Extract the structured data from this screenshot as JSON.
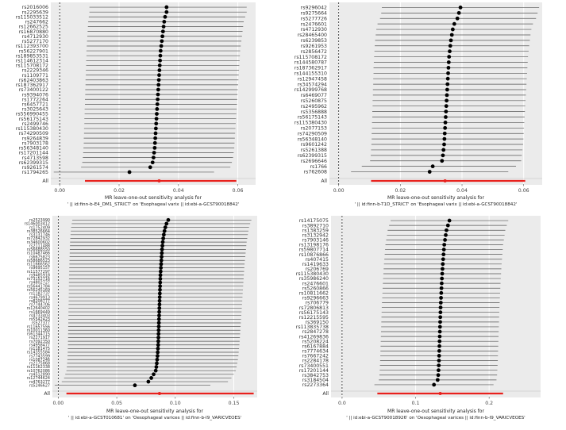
{
  "chart_data": [
    {
      "type": "forest",
      "title": "MR leave-one-out sensitivity analysis for",
      "subtitle": "' || id:finn-b-E4_DM1_STRICT' on 'Esophageal varix || id:ebi-a-GCST90018842'",
      "all_label": "All",
      "xlim": [
        -0.003,
        0.066
      ],
      "xticks": [
        0.0,
        0.02,
        0.04,
        0.06
      ],
      "xtick_labels": [
        "0.00",
        "0.02",
        "0.04",
        "0.06"
      ],
      "null_line": 0.0,
      "labels": [
        "rs2016006",
        "rs2295639",
        "rs115033512",
        "rs247662",
        "rs12662525",
        "rs16870880",
        "rs4712930",
        "rs5277170",
        "rs112393700",
        "rs56227901",
        "rs189853531",
        "rs114612314",
        "rs115708172",
        "rs2229346",
        "rs1109771",
        "rs62403863",
        "rs187362917",
        "rs73400122",
        "rs9394076",
        "rs1772264",
        "rs6457721",
        "rs3025643",
        "rs556990455",
        "rs56175143",
        "rs2499746",
        "rs115380430",
        "rs74290509",
        "rs9264839",
        "rs7903178",
        "rs56348140",
        "rs17201144",
        "rs4713598",
        "rs62399315",
        "rs9261574",
        "rs1794265"
      ],
      "estimates": [
        0.036,
        0.036,
        0.0355,
        0.0352,
        0.035,
        0.0348,
        0.0346,
        0.0344,
        0.0342,
        0.034,
        0.0339,
        0.0338,
        0.0337,
        0.0336,
        0.0335,
        0.0334,
        0.0333,
        0.0332,
        0.0331,
        0.033,
        0.0329,
        0.0328,
        0.0327,
        0.0326,
        0.0325,
        0.0324,
        0.0323,
        0.0322,
        0.0321,
        0.032,
        0.0318,
        0.0316,
        0.0313,
        0.0305,
        0.0235
      ],
      "ci_low": [
        0.01,
        0.01,
        0.0098,
        0.0096,
        0.0095,
        0.0094,
        0.0093,
        0.0092,
        0.0091,
        0.009,
        0.009,
        0.0089,
        0.0089,
        0.0088,
        0.0088,
        0.0087,
        0.0087,
        0.0086,
        0.0086,
        0.0085,
        0.0085,
        0.0084,
        0.0084,
        0.0083,
        0.0083,
        0.0082,
        0.0082,
        0.0081,
        0.0081,
        0.008,
        0.0079,
        0.0078,
        0.0076,
        0.0072,
        -0.002
      ],
      "ci_high": [
        0.063,
        0.063,
        0.0625,
        0.062,
        0.0618,
        0.0616,
        0.0614,
        0.0612,
        0.061,
        0.0608,
        0.0607,
        0.0606,
        0.0605,
        0.0604,
        0.0603,
        0.0602,
        0.0601,
        0.06,
        0.0599,
        0.0598,
        0.0597,
        0.0596,
        0.0595,
        0.0594,
        0.0593,
        0.0592,
        0.0591,
        0.059,
        0.0589,
        0.0588,
        0.0586,
        0.0584,
        0.058,
        0.0575,
        0.052
      ],
      "all": {
        "estimate": 0.0335,
        "ci": [
          0.0085,
          0.0595
        ]
      }
    },
    {
      "type": "forest",
      "title": "MR leave-one-out sensitivity analysis for",
      "subtitle": "' || id:finn-b-T1D_STRICT' on 'Esophageal varix || id:ebi-a-GCST90018842'",
      "all_label": "All",
      "xlim": [
        -0.003,
        0.066
      ],
      "xticks": [
        0.0,
        0.02,
        0.04,
        0.06
      ],
      "xtick_labels": [
        "0.00",
        "0.02",
        "0.04",
        "0.06"
      ],
      "null_line": 0.0,
      "labels": [
        "rs9296042",
        "rs9275664",
        "rs5277726",
        "rs2476601",
        "rs4712930",
        "rs28465400",
        "rs6239853",
        "rs9261953",
        "rs2856472",
        "rs115708172",
        "rs144580787",
        "rs187362917",
        "rs144155310",
        "rs12947458",
        "rs34574294",
        "rs142999768",
        "rs6469077",
        "rs5260875",
        "rs2495962",
        "rs5356888",
        "rs56175143",
        "rs115380430",
        "rs2077153",
        "rs74290509",
        "rs56348140",
        "rs9601242",
        "rs5261388",
        "rs62399315",
        "rs2696646",
        "rs1766",
        "rs762608"
      ],
      "estimates": [
        0.0395,
        0.039,
        0.0385,
        0.0375,
        0.037,
        0.0367,
        0.0364,
        0.0362,
        0.036,
        0.0358,
        0.0357,
        0.0356,
        0.0355,
        0.0354,
        0.0353,
        0.0352,
        0.0351,
        0.035,
        0.0349,
        0.0348,
        0.0347,
        0.0346,
        0.0345,
        0.0344,
        0.0343,
        0.0342,
        0.034,
        0.0338,
        0.0335,
        0.0305,
        0.0295
      ],
      "ci_low": [
        0.014,
        0.0138,
        0.0134,
        0.0126,
        0.0122,
        0.012,
        0.0118,
        0.0117,
        0.0116,
        0.0115,
        0.0114,
        0.0113,
        0.0113,
        0.0112,
        0.0112,
        0.0111,
        0.0111,
        0.011,
        0.011,
        0.0109,
        0.0109,
        0.0108,
        0.0108,
        0.0107,
        0.0107,
        0.0106,
        0.0105,
        0.0104,
        0.0102,
        0.0075,
        0.004
      ],
      "ci_high": [
        0.065,
        0.0645,
        0.064,
        0.063,
        0.0625,
        0.0622,
        0.062,
        0.0618,
        0.0616,
        0.0614,
        0.0613,
        0.0612,
        0.0611,
        0.061,
        0.0609,
        0.0608,
        0.0607,
        0.0606,
        0.0605,
        0.0604,
        0.0603,
        0.0602,
        0.0601,
        0.06,
        0.0599,
        0.0598,
        0.0596,
        0.0594,
        0.0592,
        0.0575,
        0.055
      ],
      "all": {
        "estimate": 0.0345,
        "ci": [
          0.0105,
          0.0605
        ]
      }
    },
    {
      "type": "forest",
      "title": "MR leave-one-out sensitivity analysis for",
      "subtitle": "' || id:ebi-a-GCST010681' on 'Oesophageal varices || id:finn-b-I9_VARICVEOES'",
      "all_label": "All",
      "xlim": [
        -0.005,
        0.17
      ],
      "xticks": [
        0.0,
        0.05,
        0.1,
        0.15
      ],
      "xtick_labels": [
        "0.00",
        "0.05",
        "0.10",
        "0.15"
      ],
      "null_line": 0.0,
      "labels": [
        "rs2523990",
        "rs146003412",
        "rs1752409",
        "rs38526664",
        "rs3131746",
        "rs72842932",
        "rs34600602",
        "rs2111488",
        "rs56688550",
        "rs10487466",
        "rs6675823",
        "rs58686523",
        "rs11666562",
        "rs9695157",
        "rs11577297",
        "rs9485918",
        "rs73152716",
        "rs4802727",
        "rs56441784",
        "rs56245169",
        "rs1182737",
        "rs4679913",
        "rs8208777",
        "rs7744706",
        "rs12640402",
        "rs1669449",
        "rs4733403",
        "rs5542423",
        "rs527377",
        "rs11657556",
        "rs10011360",
        "rs61344715",
        "rs2271917",
        "rs7092350",
        "rs4958477",
        "rs1181475",
        "rs14355584",
        "rs7743599",
        "rs1087246",
        "rs2175868",
        "rs11162338",
        "rs10762086",
        "rs4512890",
        "rs12744624",
        "rs4763277",
        "rs5246627"
      ],
      "estimates": [
        0.094,
        0.0925,
        0.0915,
        0.0908,
        0.0902,
        0.0897,
        0.0893,
        0.089,
        0.0887,
        0.0885,
        0.0883,
        0.0881,
        0.0879,
        0.0877,
        0.0875,
        0.0873,
        0.0872,
        0.0871,
        0.087,
        0.0869,
        0.0868,
        0.0867,
        0.0866,
        0.0865,
        0.0864,
        0.0863,
        0.0862,
        0.0861,
        0.086,
        0.0859,
        0.0858,
        0.0857,
        0.0856,
        0.0855,
        0.0854,
        0.0852,
        0.085,
        0.0848,
        0.0845,
        0.0842,
        0.0838,
        0.0833,
        0.0815,
        0.0795,
        0.077,
        0.0655
      ],
      "ci_low": [
        0.012,
        0.0115,
        0.011,
        0.0107,
        0.0105,
        0.0103,
        0.0101,
        0.01,
        0.0099,
        0.0098,
        0.0097,
        0.0096,
        0.0095,
        0.0094,
        0.0093,
        0.0092,
        0.0092,
        0.0091,
        0.0091,
        0.009,
        0.009,
        0.0089,
        0.0089,
        0.0088,
        0.0088,
        0.0087,
        0.0087,
        0.0086,
        0.0086,
        0.0085,
        0.0085,
        0.0084,
        0.0084,
        0.0083,
        0.0083,
        0.0082,
        0.0081,
        0.008,
        0.0078,
        0.0076,
        0.0073,
        0.007,
        0.006,
        0.005,
        0.003,
        -0.003
      ],
      "ci_high": [
        0.165,
        0.164,
        0.163,
        0.1625,
        0.162,
        0.1615,
        0.161,
        0.1607,
        0.1604,
        0.1601,
        0.1598,
        0.1595,
        0.1592,
        0.159,
        0.1588,
        0.1586,
        0.1584,
        0.1582,
        0.158,
        0.1578,
        0.1576,
        0.1574,
        0.1572,
        0.157,
        0.1568,
        0.1566,
        0.1564,
        0.1562,
        0.156,
        0.1558,
        0.1556,
        0.1554,
        0.1552,
        0.155,
        0.1548,
        0.1545,
        0.1542,
        0.1539,
        0.1535,
        0.153,
        0.1524,
        0.1517,
        0.15,
        0.148,
        0.145,
        0.13
      ],
      "all": {
        "estimate": 0.0865,
        "ci": [
          0.007,
          0.167
        ]
      }
    },
    {
      "type": "forest",
      "title": "MR leave-one-out sensitivity analysis for",
      "subtitle": "' || id:ebi-a-GCST90018926' on 'Oesophageal varices || id:finn-b-I9_VARICVEOES'",
      "all_label": "All",
      "xlim": [
        -0.015,
        0.27
      ],
      "xticks": [
        0.0,
        0.1,
        0.2
      ],
      "xtick_labels": [
        "0.0",
        "0.1",
        "0.2"
      ],
      "null_line": 0.0,
      "labels": [
        "rs14175075",
        "rs3892710",
        "rs1383259",
        "rs3132942",
        "rs7903146",
        "rs13198176",
        "rs59807714",
        "rs10876866",
        "rs407415",
        "rs1419633",
        "rs206769",
        "rs115380430",
        "rs35986240",
        "rs2476601",
        "rs5260866",
        "rs10811662",
        "rs9296663",
        "rs706779",
        "rs72806813",
        "rs56175143",
        "rs12215595",
        "rs369150",
        "rs113835738",
        "rs2847278",
        "rs41269836",
        "rs5208224",
        "rs6167884",
        "rs7774634",
        "rs7667242",
        "rs2284178",
        "rs73400551",
        "rs17201144",
        "rs3842753",
        "rs3184504",
        "rs2273364"
      ],
      "estimates": [
        0.146,
        0.144,
        0.142,
        0.141,
        0.14,
        0.139,
        0.1385,
        0.138,
        0.1375,
        0.137,
        0.1366,
        0.1362,
        0.1358,
        0.1355,
        0.1352,
        0.1349,
        0.1346,
        0.1343,
        0.134,
        0.1338,
        0.1336,
        0.1334,
        0.1332,
        0.133,
        0.1328,
        0.1326,
        0.1324,
        0.1322,
        0.132,
        0.1318,
        0.1315,
        0.1312,
        0.1308,
        0.13,
        0.125
      ],
      "ci_low": [
        0.066,
        0.064,
        0.062,
        0.061,
        0.06,
        0.059,
        0.0585,
        0.058,
        0.0575,
        0.057,
        0.0566,
        0.0562,
        0.0558,
        0.0555,
        0.0552,
        0.0549,
        0.0546,
        0.0543,
        0.054,
        0.0538,
        0.0536,
        0.0534,
        0.0532,
        0.053,
        0.0528,
        0.0526,
        0.0524,
        0.0522,
        0.052,
        0.0518,
        0.0515,
        0.0512,
        0.0508,
        0.05,
        0.044
      ],
      "ci_high": [
        0.226,
        0.224,
        0.222,
        0.221,
        0.22,
        0.219,
        0.2185,
        0.218,
        0.2175,
        0.217,
        0.2166,
        0.2162,
        0.2158,
        0.2155,
        0.2152,
        0.2149,
        0.2146,
        0.2143,
        0.214,
        0.2138,
        0.2136,
        0.2134,
        0.2132,
        0.213,
        0.2128,
        0.2126,
        0.2124,
        0.2122,
        0.212,
        0.2118,
        0.2115,
        0.2112,
        0.2108,
        0.21,
        0.206
      ],
      "all": {
        "estimate": 0.1335,
        "ci": [
          0.048,
          0.219
        ]
      }
    }
  ]
}
